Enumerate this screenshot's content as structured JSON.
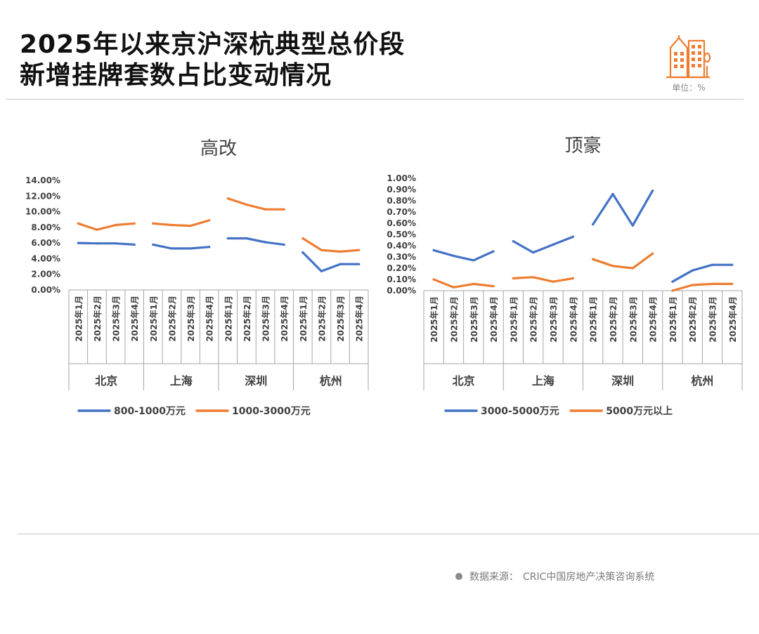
{
  "header": {
    "title_line1": "2025年以来京沪深杭典型总价段",
    "title_line2": "新增挂牌套数占比变动情况",
    "unit_label": "单位：%"
  },
  "footer": {
    "source_label": "数据来源：",
    "source_value": "CRIC中国房地产决策咨询系统"
  },
  "icons": [
    "buildings-icon",
    "bullet-dot-icon"
  ],
  "colors": {
    "blue": "#4472C4",
    "orange": "#ED7D31",
    "axis": "#a6a6a6",
    "text": "#404040"
  },
  "chart_data": [
    {
      "type": "line",
      "title": "高改",
      "groups": [
        "北京",
        "上海",
        "深圳",
        "杭州"
      ],
      "x": [
        "2025年1月",
        "2025年2月",
        "2025年3月",
        "2025年4月"
      ],
      "ylim": [
        0,
        14
      ],
      "yticks": [
        "0.00%",
        "2.00%",
        "4.00%",
        "6.00%",
        "8.00%",
        "10.00%",
        "12.00%",
        "14.00%"
      ],
      "grid": false,
      "legend_position": "bottom",
      "series": [
        {
          "name": "800-1000万元",
          "color": "#4472C4",
          "values": [
            [
              6.0,
              5.95,
              5.95,
              5.8
            ],
            [
              5.8,
              5.3,
              5.3,
              5.5
            ],
            [
              6.6,
              6.6,
              6.1,
              5.8
            ],
            [
              4.8,
              2.4,
              3.3,
              3.3
            ]
          ]
        },
        {
          "name": "1000-3000万元",
          "color": "#ED7D31",
          "values": [
            [
              8.5,
              7.7,
              8.3,
              8.5
            ],
            [
              8.5,
              8.3,
              8.2,
              8.9
            ],
            [
              11.7,
              10.9,
              10.3,
              10.3
            ],
            [
              6.6,
              5.1,
              4.9,
              5.1
            ]
          ]
        }
      ]
    },
    {
      "type": "line",
      "title": "顶豪",
      "groups": [
        "北京",
        "上海",
        "深圳",
        "杭州"
      ],
      "x": [
        "2025年1月",
        "2025年2月",
        "2025年3月",
        "2025年4月"
      ],
      "ylim": [
        0,
        1
      ],
      "yticks": [
        "0.00%",
        "0.10%",
        "0.20%",
        "0.30%",
        "0.40%",
        "0.50%",
        "0.60%",
        "0.70%",
        "0.80%",
        "0.90%",
        "1.00%"
      ],
      "grid": false,
      "legend_position": "bottom",
      "series": [
        {
          "name": "3000-5000万元",
          "color": "#4472C4",
          "values": [
            [
              0.36,
              0.31,
              0.27,
              0.35
            ],
            [
              0.44,
              0.34,
              0.41,
              0.48
            ],
            [
              0.59,
              0.86,
              0.58,
              0.89
            ],
            [
              0.08,
              0.18,
              0.23,
              0.23
            ]
          ]
        },
        {
          "name": "5000万元以上",
          "color": "#ED7D31",
          "values": [
            [
              0.1,
              0.03,
              0.06,
              0.04
            ],
            [
              0.11,
              0.12,
              0.08,
              0.11
            ],
            [
              0.28,
              0.22,
              0.2,
              0.33
            ],
            [
              0.0,
              0.05,
              0.06,
              0.06
            ]
          ]
        }
      ]
    }
  ]
}
